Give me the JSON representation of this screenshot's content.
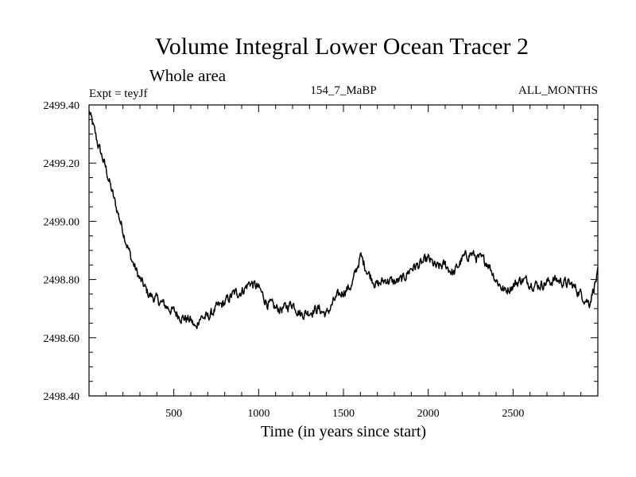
{
  "chart_data": {
    "type": "line",
    "title": "Volume Integral Lower Ocean Tracer 2",
    "subtitle": "Whole area",
    "expt_label": "Expt = teyJf",
    "center_label": "154_7_MaBP",
    "right_label": "ALL_MONTHS",
    "xlabel": "Time (in years since start)",
    "ylabel": "",
    "xlim": [
      0,
      3000
    ],
    "ylim": [
      2498.4,
      2499.4
    ],
    "x_ticks": [
      500,
      1000,
      1500,
      2000,
      2500
    ],
    "x_tick_labels": [
      "500",
      "1000",
      "1500",
      "2000",
      "2500"
    ],
    "y_ticks": [
      2498.4,
      2498.6,
      2498.8,
      2499.0,
      2499.2,
      2499.4
    ],
    "y_tick_labels": [
      "2498.40",
      "2498.60",
      "2498.80",
      "2499.00",
      "2499.20",
      "2499.40"
    ],
    "series": [
      {
        "name": "teyJf",
        "x": [
          0,
          50,
          100,
          150,
          200,
          250,
          300,
          350,
          400,
          450,
          500,
          550,
          600,
          630,
          650,
          700,
          750,
          800,
          850,
          900,
          950,
          1000,
          1050,
          1100,
          1150,
          1200,
          1250,
          1300,
          1350,
          1400,
          1450,
          1500,
          1550,
          1600,
          1650,
          1700,
          1750,
          1800,
          1850,
          1900,
          1950,
          2000,
          2050,
          2100,
          2150,
          2200,
          2250,
          2300,
          2350,
          2400,
          2450,
          2500,
          2550,
          2600,
          2650,
          2700,
          2750,
          2800,
          2850,
          2900,
          2950,
          3000
        ],
        "values": [
          2499.38,
          2499.27,
          2499.18,
          2499.07,
          2498.97,
          2498.87,
          2498.8,
          2498.75,
          2498.73,
          2498.71,
          2498.69,
          2498.67,
          2498.66,
          2498.63,
          2498.67,
          2498.67,
          2498.7,
          2498.72,
          2498.75,
          2498.76,
          2498.79,
          2498.77,
          2498.72,
          2498.7,
          2498.7,
          2498.72,
          2498.68,
          2498.69,
          2498.7,
          2498.68,
          2498.73,
          2498.76,
          2498.78,
          2498.88,
          2498.82,
          2498.78,
          2498.8,
          2498.79,
          2498.8,
          2498.84,
          2498.85,
          2498.87,
          2498.84,
          2498.85,
          2498.82,
          2498.87,
          2498.89,
          2498.87,
          2498.86,
          2498.8,
          2498.76,
          2498.78,
          2498.8,
          2498.79,
          2498.78,
          2498.79,
          2498.8,
          2498.79,
          2498.78,
          2498.75,
          2498.72,
          2498.82
        ],
        "color": "#000000"
      }
    ]
  }
}
